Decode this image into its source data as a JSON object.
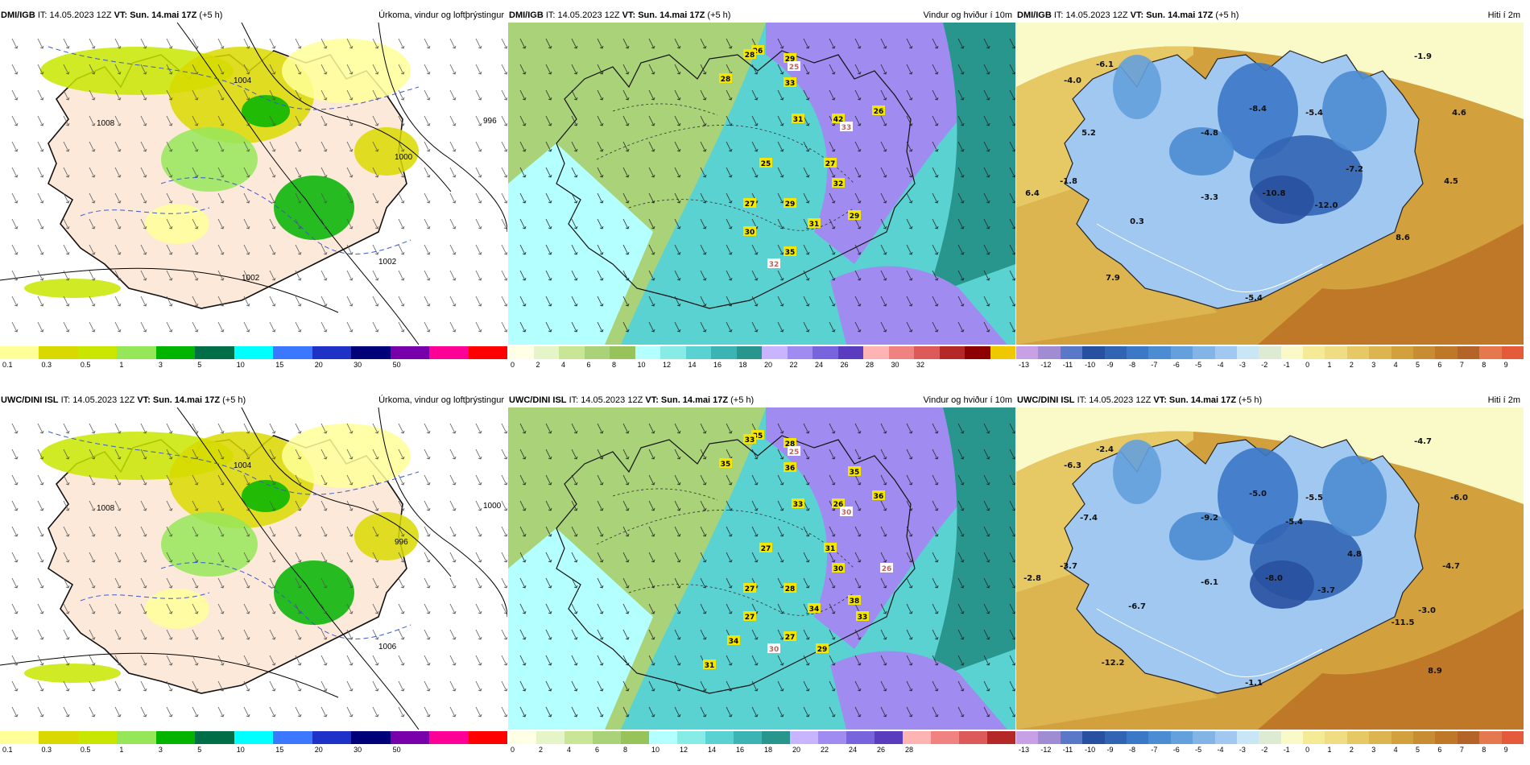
{
  "panels": [
    {
      "model": "DMI/IGB",
      "it": "IT: 14.05.2023 12Z",
      "vt_label": "VT:",
      "vt": "Sun. 14.mai 17Z",
      "offset": "(+5 h)",
      "title": "Úrkoma, vindur og loftþrýstingur",
      "kind": "precip",
      "palette": [
        "#ffff99",
        "#d9d900",
        "#c8e600",
        "#96e65a",
        "#00b400",
        "#006e46",
        "#00ffff",
        "#3c78ff",
        "#1e32c8",
        "#000078",
        "#7800aa",
        "#ff0096",
        "#ff0000"
      ],
      "ticks": [
        "0.1",
        "0.3",
        "0.5",
        "1",
        "3",
        "5",
        "10",
        "15",
        "20",
        "30",
        "50"
      ],
      "isobars": [
        "1008",
        "1004",
        "1000",
        "996",
        "1002",
        "1002"
      ],
      "values": []
    },
    {
      "model": "DMI/IGB",
      "it": "IT: 14.05.2023 12Z",
      "vt_label": "VT:",
      "vt": "Sun. 14.mai 17Z",
      "offset": "(+5 h)",
      "title": "Vindur og hviður í 10m",
      "kind": "wind",
      "palette": [
        "#ffffe6",
        "#e6f5c8",
        "#c8e696",
        "#aad278",
        "#96c35a",
        "#b4ffff",
        "#87ebe6",
        "#5ad2d2",
        "#3cb4b4",
        "#28968c",
        "#c8b4ff",
        "#a08cf0",
        "#7864dc",
        "#5a3cbe",
        "#ffb4b4",
        "#f08282",
        "#dc5a5a",
        "#b42828",
        "#8c0000",
        "#f0c800"
      ],
      "ticks": [
        "0",
        "2",
        "4",
        "6",
        "8",
        "10",
        "12",
        "14",
        "16",
        "18",
        "20",
        "22",
        "24",
        "26",
        "28",
        "30",
        "32"
      ],
      "isobars": [],
      "values": [
        "29",
        "26",
        "25",
        "28",
        "28",
        "33",
        "31",
        "42",
        "26",
        "33",
        "25",
        "27",
        "27",
        "29",
        "30",
        "29",
        "32",
        "31",
        "35",
        "32"
      ]
    },
    {
      "model": "DMI/IGB",
      "it": "IT: 14.05.2023 12Z",
      "vt_label": "VT:",
      "vt": "Sun. 14.mai 17Z",
      "offset": "(+5 h)",
      "title": "Hiti í 2m",
      "kind": "temp",
      "palette": [
        "#c8a0e6",
        "#a08cd2",
        "#5a78c8",
        "#2850a0",
        "#3264b4",
        "#3c78c8",
        "#4b8cd2",
        "#64a0dc",
        "#82b4e6",
        "#a0c8f0",
        "#c8e6f5",
        "#dcebd2",
        "#fafac8",
        "#f5eb96",
        "#f0dc82",
        "#e6c864",
        "#dcb450",
        "#d2a03c",
        "#c88c32",
        "#be7828",
        "#b46428",
        "#e67850",
        "#e65a3c"
      ],
      "ticks": [
        "-13",
        "-12",
        "-11",
        "-10",
        "-9",
        "-8",
        "-7",
        "-6",
        "-5",
        "-4",
        "-3",
        "-2",
        "-1",
        "0",
        "1",
        "2",
        "3",
        "4",
        "5",
        "6",
        "7",
        "8",
        "9"
      ],
      "isobars": [],
      "values": [
        "-1.9",
        "-6.1",
        "-4.0",
        "-8.4",
        "-5.4",
        "4.6",
        "-4.8",
        "5.2",
        "-7.2",
        "-1.8",
        "-10.8",
        "4.5",
        "6.4",
        "-3.3",
        "-12.0",
        "0.3",
        "8.6",
        "7.9",
        "-5.4"
      ]
    },
    {
      "model": "UWC/DINI ISL",
      "it": "IT: 14.05.2023 12Z",
      "vt_label": "VT:",
      "vt": "Sun. 14.mai 17Z",
      "offset": "(+5 h)",
      "title": "Úrkoma, vindur og loftþrýstingur",
      "kind": "precip",
      "palette": [
        "#ffff99",
        "#d9d900",
        "#c8e600",
        "#96e65a",
        "#00b400",
        "#006e46",
        "#00ffff",
        "#3c78ff",
        "#1e32c8",
        "#000078",
        "#7800aa",
        "#ff0096",
        "#ff0000"
      ],
      "ticks": [
        "0.1",
        "0.3",
        "0.5",
        "1",
        "3",
        "5",
        "10",
        "15",
        "20",
        "30",
        "50"
      ],
      "isobars": [
        "1008",
        "1004",
        "996",
        "1000",
        "1006"
      ],
      "values": []
    },
    {
      "model": "UWC/DINI ISL",
      "it": "IT: 14.05.2023 12Z",
      "vt_label": "VT:",
      "vt": "Sun. 14.mai 17Z",
      "offset": "(+5 h)",
      "title": "Vindur og hviður í 10m",
      "kind": "wind",
      "palette": [
        "#ffffe6",
        "#e6f5c8",
        "#c8e696",
        "#aad278",
        "#96c35a",
        "#b4ffff",
        "#87ebe6",
        "#5ad2d2",
        "#3cb4b4",
        "#28968c",
        "#c8b4ff",
        "#a08cf0",
        "#7864dc",
        "#5a3cbe",
        "#ffb4b4",
        "#f08282",
        "#dc5a5a",
        "#b42828"
      ],
      "ticks": [
        "0",
        "2",
        "4",
        "6",
        "8",
        "10",
        "12",
        "14",
        "16",
        "18",
        "20",
        "22",
        "24",
        "26",
        "28"
      ],
      "isobars": [],
      "values": [
        "28",
        "35",
        "25",
        "33",
        "35",
        "36",
        "33",
        "26",
        "36",
        "30",
        "27",
        "31",
        "27",
        "28",
        "27",
        "38",
        "30",
        "34",
        "27",
        "30",
        "31",
        "34",
        "35",
        "26",
        "33",
        "29"
      ]
    },
    {
      "model": "UWC/DINI ISL",
      "it": "IT: 14.05.2023 12Z",
      "vt_label": "VT:",
      "vt": "Sun. 14.mai 17Z",
      "offset": "(+5 h)",
      "title": "Hiti í 2m",
      "kind": "temp",
      "palette": [
        "#c8a0e6",
        "#a08cd2",
        "#5a78c8",
        "#2850a0",
        "#3264b4",
        "#3c78c8",
        "#4b8cd2",
        "#64a0dc",
        "#82b4e6",
        "#a0c8f0",
        "#c8e6f5",
        "#dcebd2",
        "#fafac8",
        "#f5eb96",
        "#f0dc82",
        "#e6c864",
        "#dcb450",
        "#d2a03c",
        "#c88c32",
        "#be7828",
        "#b46428",
        "#e67850",
        "#e65a3c"
      ],
      "ticks": [
        "-13",
        "-12",
        "-11",
        "-10",
        "-9",
        "-8",
        "-7",
        "-6",
        "-5",
        "-4",
        "-3",
        "-2",
        "-1",
        "0",
        "1",
        "2",
        "3",
        "4",
        "5",
        "6",
        "7",
        "8",
        "9"
      ],
      "isobars": [],
      "values": [
        "-4.7",
        "-2.4",
        "-6.3",
        "-5.0",
        "-5.5",
        "-6.0",
        "-9.2",
        "-7.4",
        "4.8",
        "-3.7",
        "-8.0",
        "-4.7",
        "-2.8",
        "-6.1",
        "-3.7",
        "-6.7",
        "-11.5",
        "-12.2",
        "-1.1",
        "-3.0",
        "8.9",
        "-5.4"
      ]
    }
  ]
}
